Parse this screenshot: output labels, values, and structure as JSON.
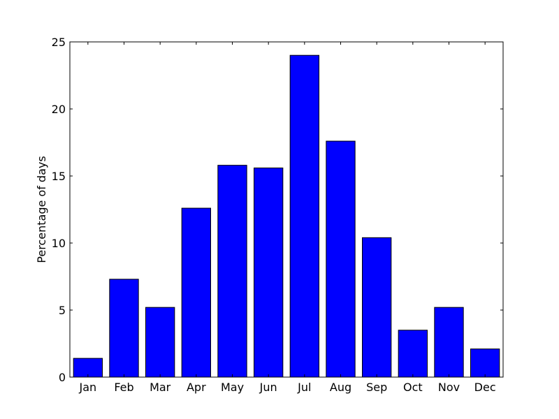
{
  "chart_data": {
    "type": "bar",
    "categories": [
      "Jan",
      "Feb",
      "Mar",
      "Apr",
      "May",
      "Jun",
      "Jul",
      "Aug",
      "Sep",
      "Oct",
      "Nov",
      "Dec"
    ],
    "values": [
      1.4,
      7.3,
      5.2,
      12.6,
      15.8,
      15.6,
      24.0,
      17.6,
      10.4,
      3.5,
      5.2,
      2.1
    ],
    "title": "",
    "xlabel": "",
    "ylabel": "Percentage of days",
    "ylim": [
      0,
      25
    ],
    "yticks": [
      0,
      5,
      10,
      15,
      20,
      25
    ],
    "grid": false,
    "colors": {
      "bar_fill": "#0000ff",
      "bar_edge": "#000000",
      "axes": "#000000",
      "background": "#ffffff"
    }
  }
}
